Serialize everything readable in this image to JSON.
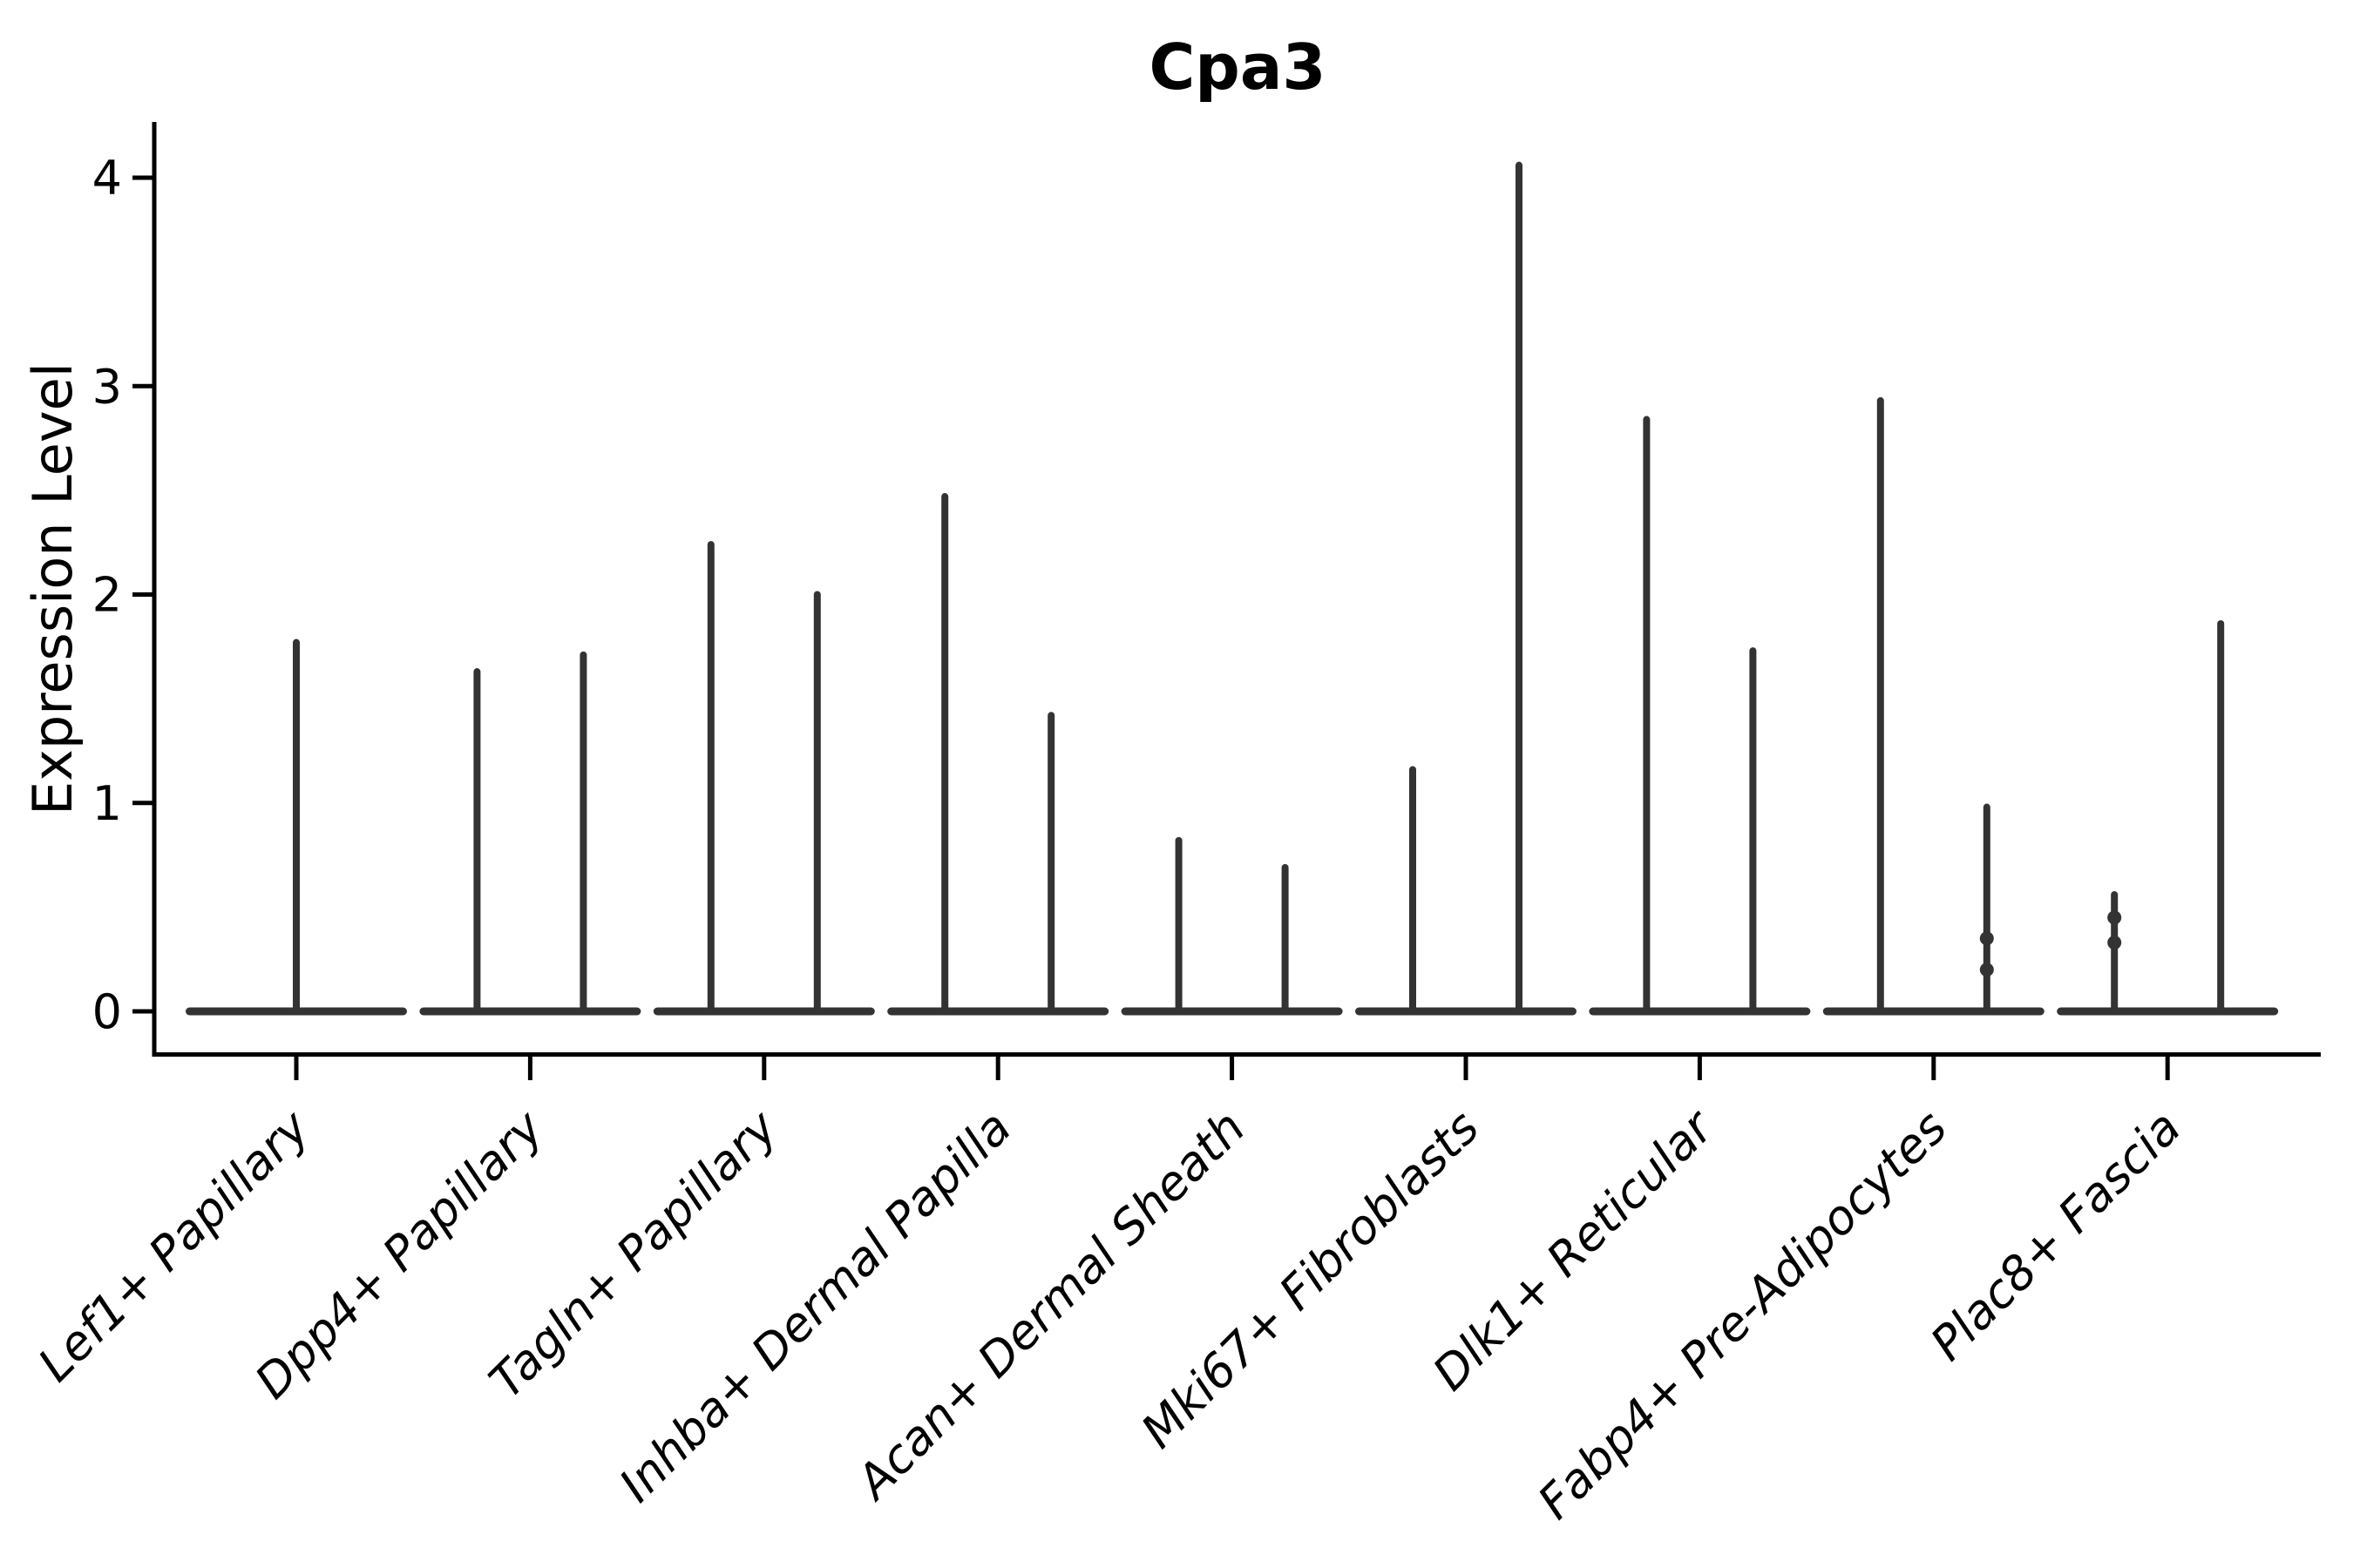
{
  "figure": {
    "background": "#ffffff"
  },
  "colors": {
    "violin": "#333333",
    "axis": "#000000",
    "text": "#000000"
  },
  "chart_data": {
    "type": "violin",
    "title": "Cpa3",
    "ylabel": "Expression Level",
    "xlabel": "",
    "ylim": [
      -0.2,
      4.25
    ],
    "yticks": [
      0,
      1,
      2,
      3,
      4
    ],
    "grid": false,
    "x_tick_rotation": 45,
    "categories": [
      "Lef1+ Papillary",
      "Dpp4+ Papillary",
      "Tagln+ Papillary",
      "Inhba+ Dermal Papilla",
      "Acan+ Dermal Sheath",
      "Mki67+ Fibroblasts",
      "Dlk1+ Reticular",
      "Fabp4+ Pre-Adipocytes",
      "Plac8+ Fascia"
    ],
    "groups": [
      {
        "label": "Lef1+ Papillary",
        "spikes": [
          1.77
        ]
      },
      {
        "label": "Dpp4+ Papillary",
        "spikes": [
          1.63,
          1.71
        ]
      },
      {
        "label": "Tagln+ Papillary",
        "spikes": [
          2.24,
          2.0
        ]
      },
      {
        "label": "Inhba+ Dermal Papilla",
        "spikes": [
          2.47,
          1.42
        ]
      },
      {
        "label": "Acan+ Dermal Sheath",
        "spikes": [
          0.82,
          0.69
        ]
      },
      {
        "label": "Mki67+ Fibroblasts",
        "spikes": [
          1.16,
          4.06
        ]
      },
      {
        "label": "Dlk1+ Reticular",
        "spikes": [
          2.84,
          1.73
        ]
      },
      {
        "label": "Fabp4+ Pre-Adipocytes",
        "spikes": [
          2.93,
          0.98
        ],
        "dots": [
          {
            "spike": 1,
            "values": [
              0.35,
              0.2
            ]
          }
        ]
      },
      {
        "label": "Plac8+ Fascia",
        "spikes": [
          0.56,
          1.86
        ],
        "dots": [
          {
            "spike": 0,
            "values": [
              0.45,
              0.33
            ]
          }
        ]
      }
    ]
  }
}
